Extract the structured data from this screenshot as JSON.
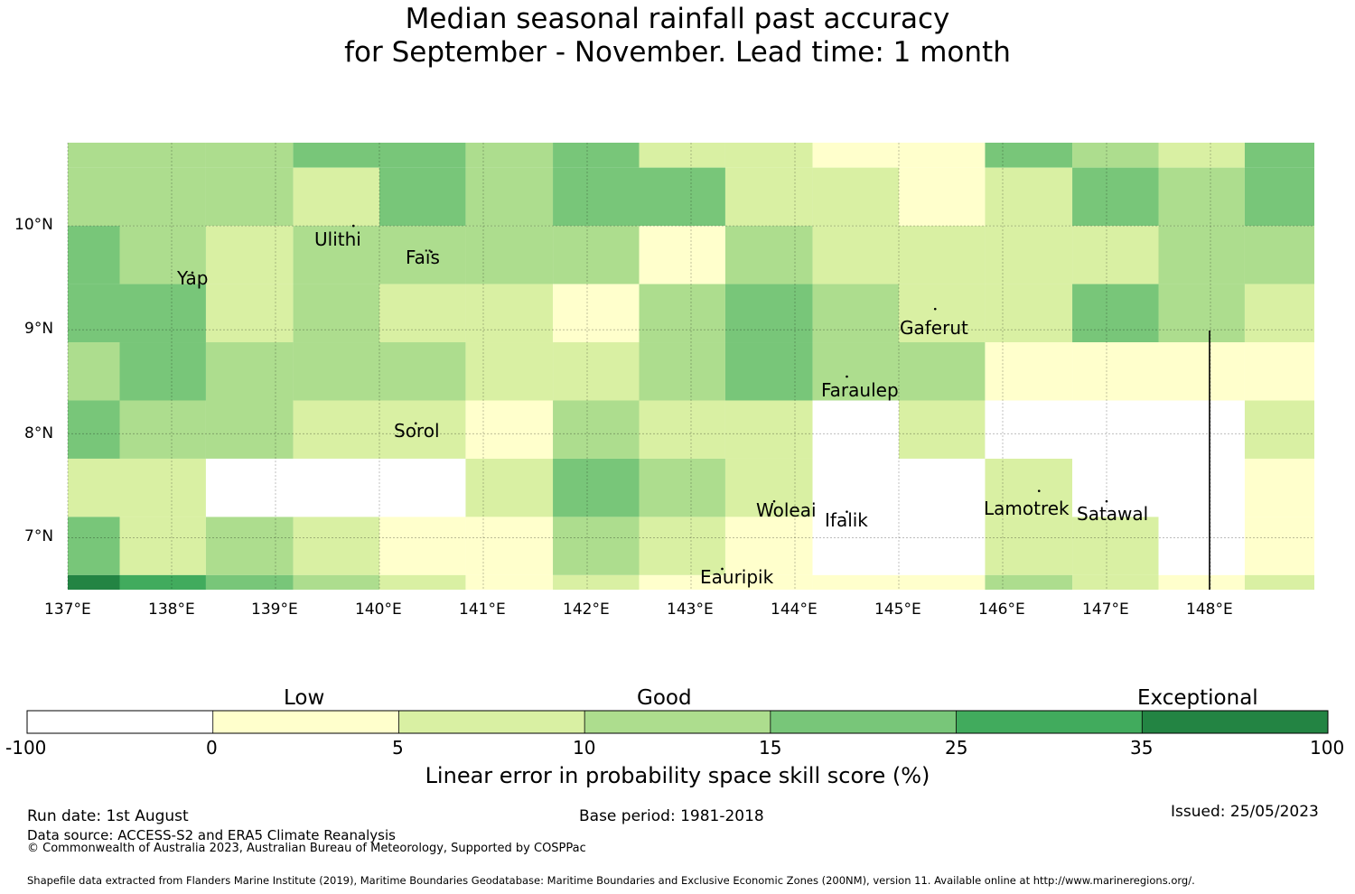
{
  "title": {
    "line1": "Median seasonal rainfall past accuracy",
    "line2": "for September - November. Lead time: 1 month"
  },
  "palette": {
    "-100": "#ffffff",
    "0": "#ffffcc",
    "5": "#d9f0a3",
    "10": "#addd8e",
    "15": "#78c679",
    "25": "#41ab5d",
    "35": "#238443"
  },
  "map": {
    "lon_range": [
      137,
      149
    ],
    "lat_range": [
      6.5,
      10.8
    ],
    "lon_ticks": [
      "137°E",
      "138°E",
      "139°E",
      "140°E",
      "141°E",
      "142°E",
      "143°E",
      "144°E",
      "145°E",
      "146°E",
      "147°E",
      "148°E"
    ],
    "lat_ticks": [
      "10°N",
      "9°N",
      "8°N",
      "7°N"
    ],
    "places": [
      {
        "name": "Yap",
        "lon": 138.2,
        "lat": 9.55
      },
      {
        "name": "Ulithi",
        "lon": 139.75,
        "lat": 10.0
      },
      {
        "name": "Faïs",
        "lon": 140.5,
        "lat": 9.75
      },
      {
        "name": "Gaferut",
        "lon": 145.35,
        "lat": 9.2
      },
      {
        "name": "Faraulep",
        "lon": 144.5,
        "lat": 8.55
      },
      {
        "name": "Sorol",
        "lon": 140.35,
        "lat": 8.1
      },
      {
        "name": "Woleai",
        "lon": 143.8,
        "lat": 7.35
      },
      {
        "name": "Ifalik",
        "lon": 144.5,
        "lat": 7.25
      },
      {
        "name": "Lamotrek",
        "lon": 146.35,
        "lat": 7.45
      },
      {
        "name": "Satawal",
        "lon": 147.0,
        "lat": 7.35
      },
      {
        "name": "Eauripik",
        "lon": 143.3,
        "lat": 6.7
      }
    ]
  },
  "chart_data": {
    "type": "heatmap",
    "value_meaning": "skill score class lower bound (%)",
    "x_edges": [
      137,
      137.5,
      138.33,
      139.17,
      140,
      140.83,
      141.67,
      142.5,
      143.33,
      144.17,
      145,
      145.83,
      146.67,
      147.5,
      148.33,
      149
    ],
    "y_edges": [
      10.8,
      10.56,
      10.0,
      9.44,
      8.88,
      8.32,
      7.76,
      7.2,
      6.64,
      6.5
    ],
    "values": [
      [
        10,
        10,
        10,
        15,
        15,
        10,
        15,
        5,
        5,
        0,
        0,
        15,
        10,
        5,
        15
      ],
      [
        10,
        10,
        10,
        5,
        15,
        10,
        15,
        15,
        5,
        5,
        0,
        5,
        15,
        10,
        15
      ],
      [
        15,
        10,
        5,
        10,
        10,
        10,
        10,
        0,
        10,
        5,
        5,
        5,
        5,
        10,
        10
      ],
      [
        15,
        15,
        5,
        10,
        5,
        5,
        0,
        10,
        15,
        10,
        5,
        5,
        15,
        10,
        5
      ],
      [
        10,
        15,
        10,
        10,
        10,
        5,
        5,
        10,
        15,
        10,
        10,
        0,
        0,
        0,
        0
      ],
      [
        15,
        10,
        10,
        5,
        5,
        0,
        10,
        5,
        5,
        -100,
        5,
        -100,
        -100,
        -100,
        5
      ],
      [
        5,
        5,
        -100,
        -100,
        -100,
        5,
        15,
        10,
        5,
        -100,
        -100,
        5,
        -100,
        -100,
        0
      ],
      [
        15,
        5,
        10,
        5,
        0,
        0,
        10,
        5,
        0,
        -100,
        -100,
        5,
        5,
        -100,
        0
      ],
      [
        35,
        25,
        15,
        10,
        5,
        0,
        5,
        0,
        0,
        0,
        0,
        10,
        5,
        0,
        5
      ]
    ]
  },
  "colorbar": {
    "categories": [
      "Low",
      "Good",
      "Exceptional"
    ],
    "ticks": [
      "-100",
      "0",
      "5",
      "10",
      "15",
      "25",
      "35",
      "100"
    ],
    "title": "Linear error in probability space skill score (%)"
  },
  "footer": {
    "run_date": "Run date: 1st August",
    "base_period": "Base period: 1981-2018",
    "issued": "Issued: 25/05/2023",
    "data_source": "Data source: ACCESS-S2 and ERA5 Climate Reanalysis",
    "copyright": "© Commonwealth of Australia 2023, Australian Bureau of Meteorology, Supported by COSPPac",
    "shapefile": "Shapefile data extracted from Flanders Marine Institute (2019), Maritime Boundaries Geodatabase: Maritime Boundaries and Exclusive Economic Zones (200NM), version 11. Available online at http://www.marineregions.org/."
  }
}
